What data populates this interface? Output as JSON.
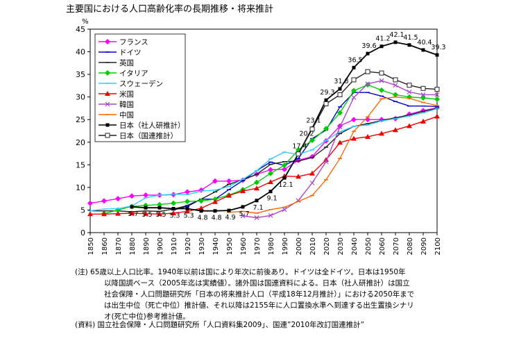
{
  "title": "主要国における人口高齢化率の長期推移・将来推計",
  "chart_data": {
    "type": "line",
    "ylabel": "%",
    "ylim": [
      0,
      45
    ],
    "yticks": [
      0,
      5,
      10,
      15,
      20,
      25,
      30,
      35,
      40,
      45
    ],
    "x": [
      1850,
      1860,
      1870,
      1880,
      1890,
      1900,
      1910,
      1920,
      1930,
      1940,
      1950,
      1960,
      1970,
      1980,
      1990,
      2000,
      2010,
      2020,
      2030,
      2040,
      2050,
      2060,
      2070,
      2080,
      2090,
      2100
    ],
    "xlim": [
      1850,
      2100
    ],
    "grid": false,
    "legend_position": "top-left",
    "series": [
      {
        "name": "フランス",
        "color": "#ff00ff",
        "marker": "diamond",
        "points": [
          [
            1850,
            6.5
          ],
          [
            1860,
            7
          ],
          [
            1870,
            7.5
          ],
          [
            1880,
            8.1
          ],
          [
            1890,
            8.3
          ],
          [
            1900,
            8.3
          ],
          [
            1910,
            8.4
          ],
          [
            1920,
            9
          ],
          [
            1930,
            9.4
          ],
          [
            1940,
            11.4
          ],
          [
            1950,
            11.4
          ],
          [
            1960,
            11.6
          ],
          [
            1970,
            12.9
          ],
          [
            1980,
            13.9
          ],
          [
            1990,
            14
          ],
          [
            2000,
            16
          ],
          [
            2010,
            16.8
          ],
          [
            2020,
            20.3
          ],
          [
            2030,
            23.6
          ],
          [
            2040,
            25
          ],
          [
            2050,
            25
          ],
          [
            2060,
            25
          ],
          [
            2070,
            25.2
          ],
          [
            2080,
            26.2
          ],
          [
            2090,
            27
          ],
          [
            2100,
            27.6
          ]
        ]
      },
      {
        "name": "ドイツ",
        "color": "#0000cc",
        "marker": "dash",
        "points": [
          [
            1910,
            5
          ],
          [
            1920,
            5.8
          ],
          [
            1930,
            7.4
          ],
          [
            1940,
            7.4
          ],
          [
            1950,
            9.5
          ],
          [
            1960,
            11.5
          ],
          [
            1970,
            13.7
          ],
          [
            1980,
            15.6
          ],
          [
            1990,
            14.9
          ],
          [
            2000,
            16.4
          ],
          [
            2010,
            20.8
          ],
          [
            2020,
            22.7
          ],
          [
            2030,
            27.8
          ],
          [
            2040,
            31
          ],
          [
            2050,
            31
          ],
          [
            2060,
            30.2
          ],
          [
            2070,
            29
          ],
          [
            2080,
            28
          ],
          [
            2090,
            28
          ],
          [
            2100,
            27.9
          ]
        ]
      },
      {
        "name": "英国",
        "color": "#222222",
        "marker": "dash",
        "points": [
          [
            1850,
            4.8
          ],
          [
            1860,
            4.8
          ],
          [
            1870,
            4.8
          ],
          [
            1880,
            4.6
          ],
          [
            1890,
            4.8
          ],
          [
            1900,
            4.7
          ],
          [
            1910,
            5.2
          ],
          [
            1920,
            6
          ],
          [
            1930,
            7.4
          ],
          [
            1940,
            9
          ],
          [
            1950,
            10.7
          ],
          [
            1960,
            11.7
          ],
          [
            1970,
            12.9
          ],
          [
            1980,
            15.1
          ],
          [
            1990,
            15.7
          ],
          [
            2000,
            15.8
          ],
          [
            2010,
            16.6
          ],
          [
            2020,
            18.9
          ],
          [
            2030,
            21.9
          ],
          [
            2040,
            23.5
          ],
          [
            2050,
            24.1
          ],
          [
            2060,
            24.8
          ],
          [
            2070,
            25.4
          ],
          [
            2080,
            26
          ],
          [
            2090,
            26.8
          ],
          [
            2100,
            27.5
          ]
        ]
      },
      {
        "name": "イタリア",
        "color": "#00cc00",
        "marker": "diamond",
        "points": [
          [
            1860,
            4.2
          ],
          [
            1870,
            5
          ],
          [
            1880,
            5.8
          ],
          [
            1890,
            6
          ],
          [
            1900,
            6.2
          ],
          [
            1910,
            6.5
          ],
          [
            1920,
            6.9
          ],
          [
            1930,
            7
          ],
          [
            1940,
            7.4
          ],
          [
            1950,
            8.3
          ],
          [
            1960,
            9.5
          ],
          [
            1970,
            11.1
          ],
          [
            1980,
            13.1
          ],
          [
            1990,
            14.9
          ],
          [
            2000,
            18.3
          ],
          [
            2010,
            20.4
          ],
          [
            2020,
            23
          ],
          [
            2030,
            26.5
          ],
          [
            2040,
            31.4
          ],
          [
            2050,
            32.7
          ],
          [
            2060,
            31.5
          ],
          [
            2070,
            30.5
          ],
          [
            2080,
            30
          ],
          [
            2090,
            29.8
          ],
          [
            2100,
            29.5
          ]
        ]
      },
      {
        "name": "スウェーデン",
        "color": "#33ccff",
        "marker": "dash",
        "points": [
          [
            1850,
            4.8
          ],
          [
            1860,
            5.2
          ],
          [
            1870,
            5.3
          ],
          [
            1880,
            5.9
          ],
          [
            1890,
            7.7
          ],
          [
            1900,
            8.3
          ],
          [
            1910,
            8.5
          ],
          [
            1920,
            8.4
          ],
          [
            1930,
            9.2
          ],
          [
            1940,
            9.4
          ],
          [
            1950,
            10.2
          ],
          [
            1960,
            11.8
          ],
          [
            1970,
            13.7
          ],
          [
            1980,
            16.3
          ],
          [
            1990,
            17.8
          ],
          [
            2000,
            17.3
          ],
          [
            2010,
            18.3
          ],
          [
            2020,
            20.4
          ],
          [
            2030,
            22.3
          ],
          [
            2040,
            23.5
          ],
          [
            2050,
            23.8
          ],
          [
            2060,
            24.7
          ],
          [
            2070,
            25.2
          ],
          [
            2080,
            25.8
          ],
          [
            2090,
            26.5
          ],
          [
            2100,
            27.4
          ]
        ]
      },
      {
        "name": "米国",
        "color": "#ee0000",
        "marker": "triangle",
        "points": [
          [
            1850,
            4.1
          ],
          [
            1860,
            4.1
          ],
          [
            1870,
            4.2
          ],
          [
            1880,
            4.3
          ],
          [
            1890,
            4.2
          ],
          [
            1900,
            4.1
          ],
          [
            1910,
            4.3
          ],
          [
            1920,
            4.7
          ],
          [
            1930,
            5.4
          ],
          [
            1940,
            6.8
          ],
          [
            1950,
            8.2
          ],
          [
            1960,
            9.2
          ],
          [
            1970,
            9.8
          ],
          [
            1980,
            11.2
          ],
          [
            1990,
            12.5
          ],
          [
            2000,
            12.4
          ],
          [
            2010,
            13.1
          ],
          [
            2020,
            16.1
          ],
          [
            2030,
            19.9
          ],
          [
            2040,
            20.8
          ],
          [
            2050,
            21.2
          ],
          [
            2060,
            21.9
          ],
          [
            2070,
            22.7
          ],
          [
            2080,
            23.6
          ],
          [
            2090,
            24.6
          ],
          [
            2100,
            25.7
          ]
        ]
      },
      {
        "name": "韓国",
        "color": "#aa44cc",
        "marker": "x",
        "points": [
          [
            1960,
            3.7
          ],
          [
            1970,
            3.3
          ],
          [
            1980,
            3.8
          ],
          [
            1990,
            5.1
          ],
          [
            2000,
            7.1
          ],
          [
            2010,
            11
          ],
          [
            2020,
            15.7
          ],
          [
            2030,
            23.4
          ],
          [
            2040,
            29.9
          ],
          [
            2050,
            32.9
          ],
          [
            2060,
            33.6
          ],
          [
            2070,
            32.6
          ],
          [
            2080,
            31.1
          ],
          [
            2090,
            30.5
          ],
          [
            2100,
            30.5
          ]
        ]
      },
      {
        "name": "中国",
        "color": "#ff6600",
        "marker": "dash",
        "points": [
          [
            1950,
            4.5
          ],
          [
            1960,
            4.7
          ],
          [
            1970,
            4.3
          ],
          [
            1980,
            5.1
          ],
          [
            1990,
            5.6
          ],
          [
            2000,
            6.9
          ],
          [
            2010,
            8.2
          ],
          [
            2020,
            11.7
          ],
          [
            2030,
            16.4
          ],
          [
            2040,
            22.4
          ],
          [
            2050,
            25.6
          ],
          [
            2060,
            29.6
          ],
          [
            2070,
            30
          ],
          [
            2080,
            29.7
          ],
          [
            2090,
            28.8
          ],
          [
            2100,
            28.1
          ]
        ]
      },
      {
        "name": "日本（社人研推計）",
        "color": "#000000",
        "marker": "square",
        "points": [
          [
            1880,
            5.7
          ],
          [
            1890,
            5.5
          ],
          [
            1900,
            5.5
          ],
          [
            1910,
            5.3
          ],
          [
            1920,
            5.3
          ],
          [
            1930,
            4.8
          ],
          [
            1940,
            4.8
          ],
          [
            1950,
            4.9
          ],
          [
            1960,
            5.7
          ],
          [
            1970,
            7.1
          ],
          [
            1980,
            9.1
          ],
          [
            1990,
            12.1
          ],
          [
            2000,
            17.4
          ],
          [
            2010,
            23.1
          ],
          [
            2020,
            29.3
          ],
          [
            2030,
            31.8
          ],
          [
            2040,
            36.5
          ],
          [
            2050,
            39.6
          ],
          [
            2060,
            41.2
          ],
          [
            2070,
            42.1
          ],
          [
            2080,
            41.5
          ],
          [
            2090,
            40.4
          ],
          [
            2100,
            39.3
          ]
        ]
      },
      {
        "name": "日本（国連推計）",
        "color": "#222222",
        "marker": "square-open",
        "points": [
          [
            2000,
            17.4
          ],
          [
            2010,
            22.9
          ],
          [
            2020,
            28.5
          ],
          [
            2030,
            30.5
          ],
          [
            2040,
            33.8
          ],
          [
            2050,
            35.6
          ],
          [
            2060,
            35.3
          ],
          [
            2070,
            33.8
          ],
          [
            2080,
            32.6
          ],
          [
            2090,
            31.9
          ],
          [
            2100,
            31.7
          ]
        ]
      }
    ],
    "labels": [
      {
        "text": "5.7",
        "x": 1880,
        "y": 5.7
      },
      {
        "text": "5.5",
        "x": 1890,
        "y": 5.5
      },
      {
        "text": "5.5",
        "x": 1900,
        "y": 5.5
      },
      {
        "text": "5.3",
        "x": 1910,
        "y": 5.3
      },
      {
        "text": "5.3",
        "x": 1920,
        "y": 5.3
      },
      {
        "text": "4.8",
        "x": 1930,
        "y": 4.8
      },
      {
        "text": "4.8",
        "x": 1940,
        "y": 4.8
      },
      {
        "text": "4.9",
        "x": 1950,
        "y": 4.9
      },
      {
        "text": "5.7",
        "x": 1960,
        "y": 5.7
      },
      {
        "text": "7.1",
        "x": 1970,
        "y": 7.1
      },
      {
        "text": "9.1",
        "x": 1980,
        "y": 9.1
      },
      {
        "text": "12.1",
        "x": 1990,
        "y": 12.1
      },
      {
        "text": "17.4",
        "x": 2000,
        "y": 17.4
      },
      {
        "text": "20.2",
        "x": 2005,
        "y": 20.2
      },
      {
        "text": "23.1",
        "x": 2010,
        "y": 23.1
      },
      {
        "text": "29.3",
        "x": 2020,
        "y": 29.3
      },
      {
        "text": "31.8",
        "x": 2030,
        "y": 31.8
      },
      {
        "text": "36.5",
        "x": 2040,
        "y": 36.5
      },
      {
        "text": "39.6",
        "x": 2050,
        "y": 39.6
      },
      {
        "text": "41.2",
        "x": 2060,
        "y": 41.2
      },
      {
        "text": "42.1",
        "x": 2070,
        "y": 42.1
      },
      {
        "text": "41.5",
        "x": 2080,
        "y": 41.5
      },
      {
        "text": "40.4",
        "x": 2090,
        "y": 40.4
      },
      {
        "text": "39.3",
        "x": 2100,
        "y": 39.3
      }
    ]
  },
  "notes": {
    "line1": "(注) 65歳以上人口比率。1940年以前は国により年次に前後あり。ドイツは全ドイツ。日本は1950年",
    "line2": "以降国調ベース（2005年迄は実績値）。諸外国は国連資料による。日本（社人研推計）は国立",
    "line3": "社会保障・人口問題研究所「日本の将来推計人口（平成18年12月推計）」における2050年まで",
    "line4": "は出生中位（死亡中位）推計値、それ以降は2155年に人口置換水準へ到達する出生置換シナリ",
    "line5": "オ(死亡中位)参考推計値。",
    "source": "(資料) 国立社会保障・人口問題研究所「人口資料集2009」、国連”2010年改訂国連推計”"
  }
}
